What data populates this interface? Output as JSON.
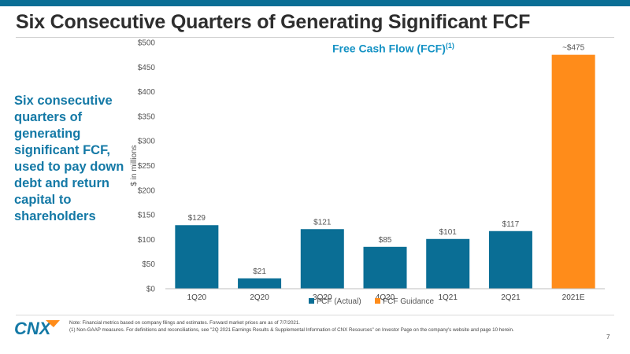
{
  "slide": {
    "title": "Six Consecutive Quarters of Generating Significant FCF",
    "side_text": "Six consecutive quarters of generating significant FCF, used to pay down debt and return capital to shareholders",
    "page_number": "7",
    "logo_text": "CNX"
  },
  "footnotes": {
    "note": "Note: Financial metrics based on company filings and estimates. Forward market prices are as of 7/7/2021.",
    "fn1": "(1) Non-GAAP measures. For definitions and reconciliations, see \"2Q 2021 Earnings Results & Supplemental Information of CNX Resources\" on Investor Page on the company's website and page 10 herein."
  },
  "chart_data": {
    "type": "bar",
    "title": "Free Cash Flow (FCF)",
    "title_superscript": "(1)",
    "ylabel": "$ in millions",
    "xlabel": "",
    "ylim": [
      0,
      500
    ],
    "yticks": [
      0,
      50,
      100,
      150,
      200,
      250,
      300,
      350,
      400,
      450,
      500
    ],
    "ytick_labels": [
      "$0",
      "$50",
      "$100",
      "$150",
      "$200",
      "$250",
      "$300",
      "$350",
      "$400",
      "$450",
      "$500"
    ],
    "categories": [
      "1Q20",
      "2Q20",
      "3Q20",
      "4Q20",
      "1Q21",
      "2Q21",
      "2021E"
    ],
    "values": [
      129,
      21,
      121,
      85,
      101,
      117,
      475
    ],
    "data_labels": [
      "$129",
      "$21",
      "$121",
      "$85",
      "$101",
      "$117",
      "~$475"
    ],
    "series_index": [
      0,
      0,
      0,
      0,
      0,
      0,
      1
    ],
    "series": [
      {
        "name": "FCF (Actual)",
        "color": "#0a6e95"
      },
      {
        "name": "FCF Guidance",
        "color": "#ff8c1a"
      }
    ],
    "legend_position": "bottom",
    "grid": false
  },
  "colors": {
    "accent_blue": "#1479a6",
    "top_bar": "#0a6e95",
    "guidance_orange": "#ff8c1a"
  },
  "icons": {
    "logo": "cnx-logo"
  }
}
